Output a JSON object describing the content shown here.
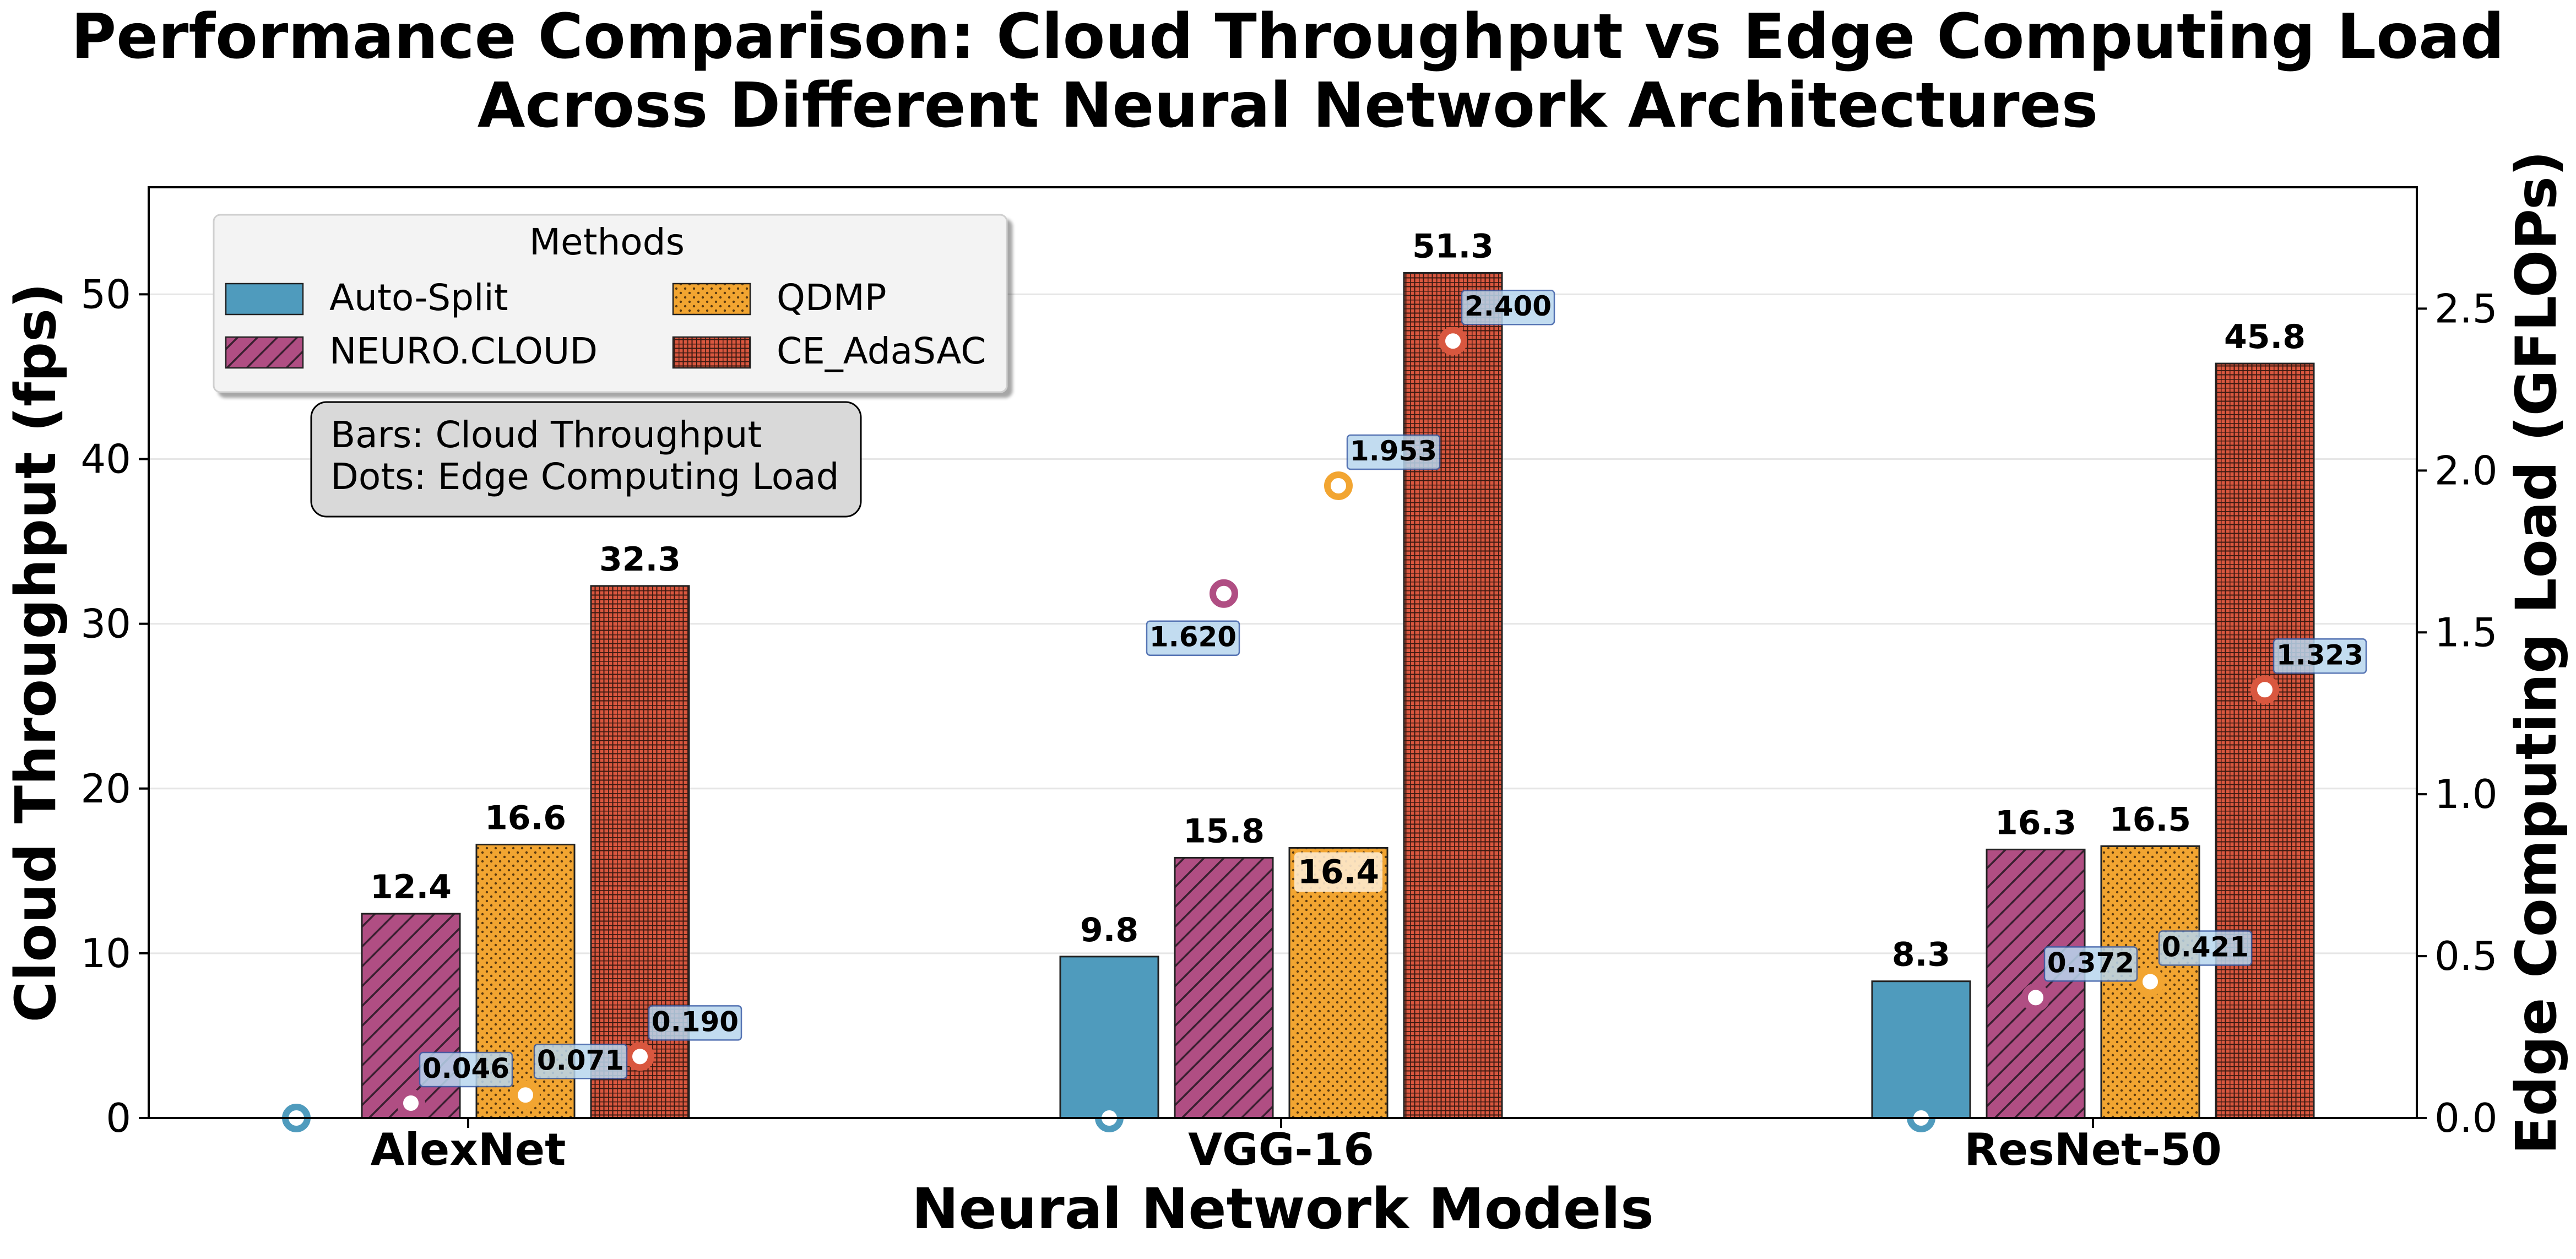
{
  "chart_data": {
    "type": "bar",
    "title": "Performance Comparison: Cloud Throughput vs Edge Computing Load\nAcross Different Neural Network Architectures",
    "xlabel": "Neural Network Models",
    "ylabel": "Cloud Throughput (fps)",
    "y2label": "Edge Computing Load (GFLOPs)",
    "categories": [
      "AlexNet",
      "VGG-16",
      "ResNet-50"
    ],
    "ylim": [
      0,
      56.5
    ],
    "y2lim": [
      0,
      2.875
    ],
    "yticks": [
      0,
      10,
      20,
      30,
      40,
      50
    ],
    "y2ticks": [
      "0.0",
      "0.5",
      "1.0",
      "1.5",
      "2.0",
      "2.5"
    ],
    "grid": "horizontal",
    "legend": {
      "title": "Methods",
      "position": "top-left",
      "columns": 2
    },
    "annotation": "Bars: Cloud Throughput\nDots: Edge Computing Load",
    "series": [
      {
        "name": "Auto-Split",
        "color": "#4f9bbd",
        "pattern": "solid",
        "throughput": [
          0,
          9.8,
          8.3
        ],
        "throughput_labels": [
          "",
          "9.8",
          "8.3"
        ],
        "edge_load": [
          0.0,
          0.0,
          0.0
        ],
        "edge_labels": [
          "",
          "",
          ""
        ]
      },
      {
        "name": "NEURO.CLOUD",
        "color": "#b04e83",
        "pattern": "diagonal",
        "throughput": [
          12.4,
          15.8,
          16.3
        ],
        "throughput_labels": [
          "12.4",
          "15.8",
          "16.3"
        ],
        "edge_load": [
          0.046,
          1.62,
          0.372
        ],
        "edge_labels": [
          "0.046",
          "1.620",
          "0.372"
        ]
      },
      {
        "name": "QDMP",
        "color": "#f2a531",
        "pattern": "dots",
        "throughput": [
          16.6,
          16.4,
          16.5
        ],
        "throughput_labels": [
          "16.6",
          "16.4",
          "16.5"
        ],
        "edge_load": [
          0.071,
          1.953,
          0.421
        ],
        "edge_labels": [
          "0.071",
          "1.953",
          "0.421"
        ]
      },
      {
        "name": "CE_AdaSAC",
        "color": "#d9573f",
        "pattern": "grid",
        "throughput": [
          32.3,
          51.3,
          45.8
        ],
        "throughput_labels": [
          "32.3",
          "51.3",
          "45.8"
        ],
        "edge_load": [
          0.19,
          2.4,
          1.323
        ],
        "edge_labels": [
          "0.190",
          "2.400",
          "1.323"
        ]
      }
    ]
  }
}
